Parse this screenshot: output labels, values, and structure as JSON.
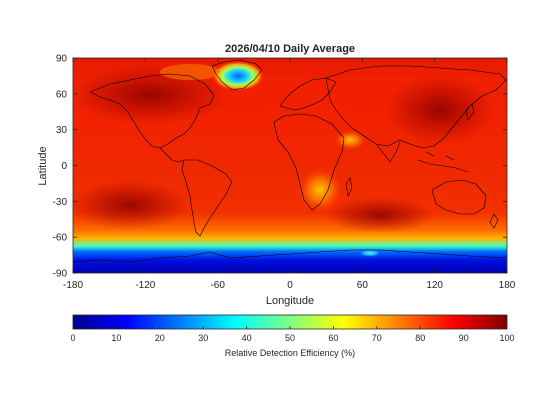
{
  "map": {
    "title": "2026/04/10 Daily Average",
    "xlabel": "Longitude",
    "ylabel": "Latitude",
    "xlim": [
      -180,
      180
    ],
    "ylim": [
      -90,
      90
    ],
    "xticks": [
      -180,
      -120,
      -60,
      0,
      60,
      120,
      180
    ],
    "yticks": [
      90,
      60,
      30,
      0,
      -30,
      -60,
      -90
    ],
    "projection": "equirectangular",
    "coastlines": true,
    "colormap": "jet",
    "colormap_stops": [
      "#00008f",
      "#0000ff",
      "#0080ff",
      "#00ffff",
      "#80ff80",
      "#ffff00",
      "#ff8000",
      "#ff0000",
      "#800000"
    ]
  },
  "colorbar": {
    "label": "Relative Detection Efficiency (%)",
    "min": 0,
    "max": 100,
    "ticks": [
      0,
      10,
      20,
      30,
      40,
      50,
      60,
      70,
      80,
      90,
      100
    ]
  }
}
